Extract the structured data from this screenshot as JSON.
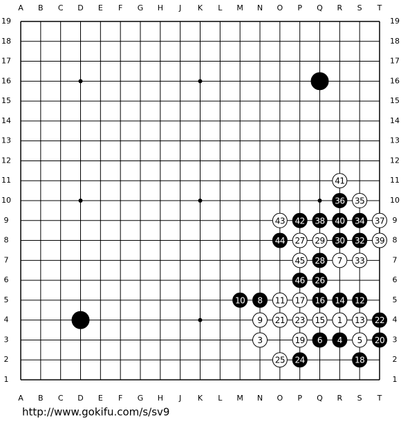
{
  "board": {
    "columns": [
      "A",
      "B",
      "C",
      "D",
      "E",
      "F",
      "G",
      "H",
      "J",
      "K",
      "L",
      "M",
      "N",
      "O",
      "P",
      "Q",
      "R",
      "S",
      "T"
    ],
    "rows": [
      19,
      18,
      17,
      16,
      15,
      14,
      13,
      12,
      11,
      10,
      9,
      8,
      7,
      6,
      5,
      4,
      3,
      2,
      1
    ],
    "stones": [
      {
        "col": "Q",
        "row": 16,
        "color": "black"
      },
      {
        "col": "D",
        "row": 4,
        "color": "black"
      },
      {
        "col": "R",
        "row": 11,
        "color": "white",
        "label": 41
      },
      {
        "col": "R",
        "row": 10,
        "color": "black",
        "label": 36
      },
      {
        "col": "S",
        "row": 10,
        "color": "white",
        "label": 35
      },
      {
        "col": "O",
        "row": 9,
        "color": "white",
        "label": 43
      },
      {
        "col": "P",
        "row": 9,
        "color": "black",
        "label": 42
      },
      {
        "col": "Q",
        "row": 9,
        "color": "black",
        "label": 38
      },
      {
        "col": "R",
        "row": 9,
        "color": "black",
        "label": 40
      },
      {
        "col": "S",
        "row": 9,
        "color": "black",
        "label": 34
      },
      {
        "col": "T",
        "row": 9,
        "color": "white",
        "label": 37
      },
      {
        "col": "O",
        "row": 8,
        "color": "black",
        "label": 44
      },
      {
        "col": "P",
        "row": 8,
        "color": "white",
        "label": 27
      },
      {
        "col": "Q",
        "row": 8,
        "color": "white",
        "label": 29
      },
      {
        "col": "R",
        "row": 8,
        "color": "black",
        "label": 30
      },
      {
        "col": "S",
        "row": 8,
        "color": "black",
        "label": 32
      },
      {
        "col": "T",
        "row": 8,
        "color": "white",
        "label": 39
      },
      {
        "col": "P",
        "row": 7,
        "color": "white",
        "label": 45
      },
      {
        "col": "Q",
        "row": 7,
        "color": "black",
        "label": 28
      },
      {
        "col": "R",
        "row": 7,
        "color": "white",
        "label": 7
      },
      {
        "col": "S",
        "row": 7,
        "color": "white",
        "label": 33
      },
      {
        "col": "P",
        "row": 6,
        "color": "black",
        "label": 46
      },
      {
        "col": "Q",
        "row": 6,
        "color": "black",
        "label": 26
      },
      {
        "col": "M",
        "row": 5,
        "color": "black",
        "label": 10
      },
      {
        "col": "N",
        "row": 5,
        "color": "black",
        "label": 8
      },
      {
        "col": "O",
        "row": 5,
        "color": "white",
        "label": 11
      },
      {
        "col": "P",
        "row": 5,
        "color": "white",
        "label": 17
      },
      {
        "col": "Q",
        "row": 5,
        "color": "black",
        "label": 16
      },
      {
        "col": "R",
        "row": 5,
        "color": "black",
        "label": 14
      },
      {
        "col": "S",
        "row": 5,
        "color": "black",
        "label": 12
      },
      {
        "col": "N",
        "row": 4,
        "color": "white",
        "label": 9
      },
      {
        "col": "O",
        "row": 4,
        "color": "white",
        "label": 21
      },
      {
        "col": "P",
        "row": 4,
        "color": "white",
        "label": 23
      },
      {
        "col": "Q",
        "row": 4,
        "color": "white",
        "label": 15
      },
      {
        "col": "R",
        "row": 4,
        "color": "white",
        "label": 1
      },
      {
        "col": "S",
        "row": 4,
        "color": "white",
        "label": 13
      },
      {
        "col": "T",
        "row": 4,
        "color": "black",
        "label": 22
      },
      {
        "col": "N",
        "row": 3,
        "color": "white",
        "label": 3
      },
      {
        "col": "P",
        "row": 3,
        "color": "white",
        "label": 19
      },
      {
        "col": "Q",
        "row": 3,
        "color": "black",
        "label": 6
      },
      {
        "col": "R",
        "row": 3,
        "color": "black",
        "label": 4
      },
      {
        "col": "S",
        "row": 3,
        "color": "white",
        "label": 5
      },
      {
        "col": "T",
        "row": 3,
        "color": "black",
        "label": 20
      },
      {
        "col": "O",
        "row": 2,
        "color": "white",
        "label": 25
      },
      {
        "col": "P",
        "row": 2,
        "color": "black",
        "label": 24
      },
      {
        "col": "S",
        "row": 2,
        "color": "black",
        "label": 18
      }
    ]
  },
  "footer": {
    "url": "http://www.gokifu.com/s/sv9"
  }
}
